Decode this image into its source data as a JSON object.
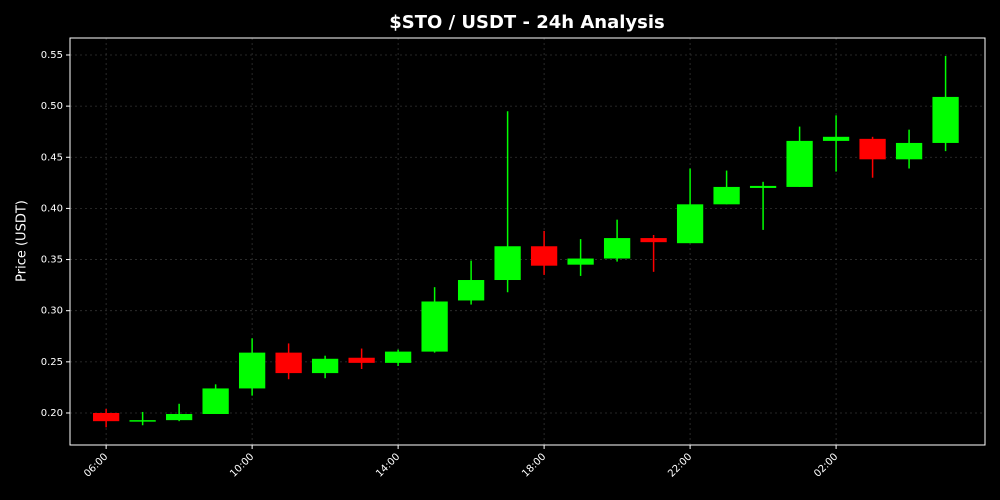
{
  "chart_data": {
    "type": "candlestick",
    "title": "$STO / USDT - 24h Analysis",
    "y_label": "Price (USDT)",
    "x": [
      0,
      1,
      2,
      3,
      4,
      5,
      6,
      7,
      8,
      9,
      10,
      11,
      12,
      13,
      14,
      15,
      16,
      17,
      18,
      19,
      20,
      21,
      22,
      23
    ],
    "open": [
      0.2,
      0.192,
      0.193,
      0.199,
      0.224,
      0.259,
      0.239,
      0.254,
      0.249,
      0.26,
      0.31,
      0.33,
      0.363,
      0.345,
      0.351,
      0.371,
      0.366,
      0.404,
      0.42,
      0.421,
      0.466,
      0.468,
      0.448,
      0.464
    ],
    "high": [
      0.204,
      0.201,
      0.209,
      0.228,
      0.273,
      0.268,
      0.256,
      0.263,
      0.262,
      0.323,
      0.349,
      0.495,
      0.378,
      0.37,
      0.389,
      0.374,
      0.439,
      0.437,
      0.426,
      0.48,
      0.491,
      0.47,
      0.477,
      0.549
    ],
    "low": [
      0.186,
      0.188,
      0.192,
      0.199,
      0.217,
      0.233,
      0.234,
      0.243,
      0.246,
      0.259,
      0.306,
      0.318,
      0.335,
      0.334,
      0.348,
      0.338,
      0.366,
      0.404,
      0.379,
      0.421,
      0.436,
      0.43,
      0.439,
      0.456
    ],
    "close": [
      0.192,
      0.193,
      0.199,
      0.224,
      0.259,
      0.239,
      0.253,
      0.249,
      0.26,
      0.309,
      0.33,
      0.363,
      0.344,
      0.351,
      0.371,
      0.367,
      0.404,
      0.421,
      0.422,
      0.466,
      0.47,
      0.448,
      0.464,
      0.509
    ],
    "up_color": "#00ff00",
    "down_color": "#ff0000",
    "xlim": [
      -0.99,
      24.08
    ],
    "xticks": [
      {
        "value": 0,
        "label": "06:00"
      },
      {
        "value": 4,
        "label": "10:00"
      },
      {
        "value": 8,
        "label": "14:00"
      },
      {
        "value": 12,
        "label": "18:00"
      },
      {
        "value": 16,
        "label": "22:00"
      },
      {
        "value": 20,
        "label": "02:00"
      }
    ],
    "ylim": [
      0.1687,
      0.5666
    ],
    "yticks": [
      {
        "value": 0.2,
        "label": "0.20"
      },
      0.25,
      {
        "value": 0.3,
        "label": "0.30"
      },
      0.35,
      {
        "value": 0.4,
        "label": "0.40"
      },
      0.45,
      {
        "value": 0.5,
        "label": "0.50"
      },
      0.55
    ],
    "grid": true
  }
}
